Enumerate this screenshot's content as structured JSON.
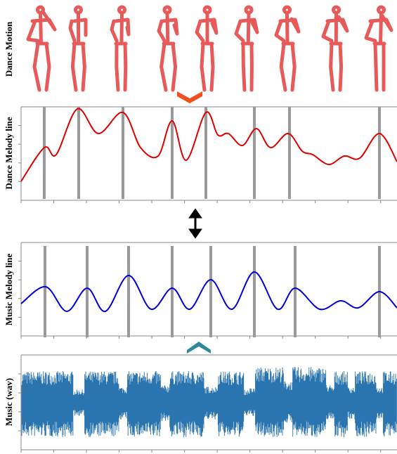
{
  "panels": [
    {
      "label": "Dance Motion"
    },
    {
      "label": "Dance Melody line"
    },
    {
      "label": "Music Melody line"
    },
    {
      "label": "Music (wav)"
    }
  ]
}
